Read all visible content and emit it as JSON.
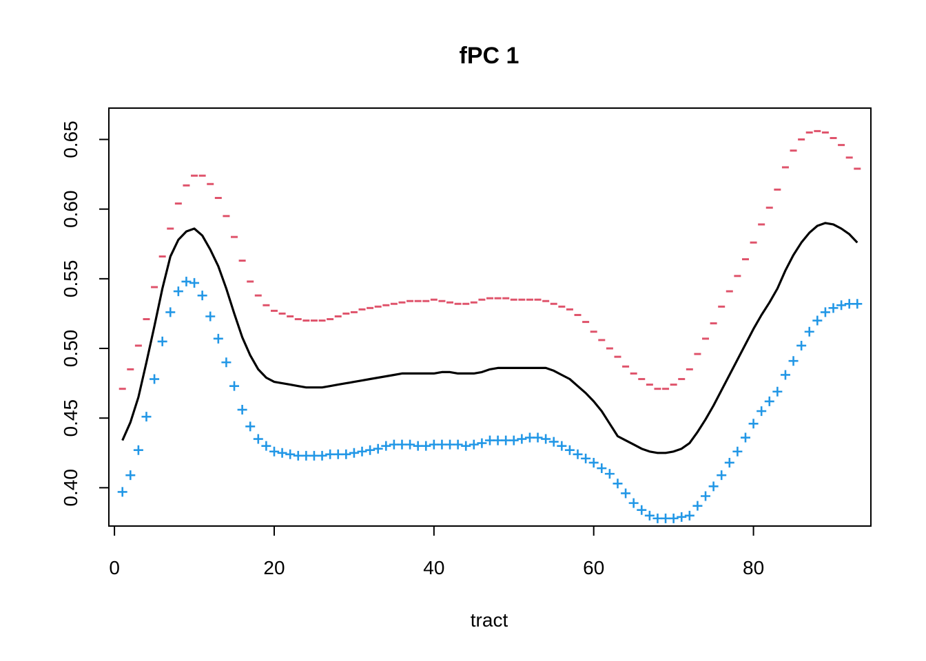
{
  "chart_data": {
    "type": "line",
    "title": "fPC 1",
    "xlabel": "tract",
    "ylabel": "",
    "xlim": [
      -0.7,
      94.7
    ],
    "ylim": [
      0.3725,
      0.6725
    ],
    "x_ticks": [
      0,
      20,
      40,
      60,
      80
    ],
    "y_ticks": [
      0.4,
      0.45,
      0.5,
      0.55,
      0.6,
      0.65
    ],
    "x_tick_labels": [
      "0",
      "20",
      "40",
      "60",
      "80"
    ],
    "y_tick_labels": [
      "0.40",
      "0.45",
      "0.50",
      "0.55",
      "0.60",
      "0.65"
    ],
    "grid": false,
    "legend": "none",
    "series": [
      {
        "role": "mean",
        "style": "line",
        "color": "#000000",
        "x": [
          1,
          2,
          3,
          4,
          5,
          6,
          7,
          8,
          9,
          10,
          11,
          12,
          13,
          14,
          15,
          16,
          17,
          18,
          19,
          20,
          21,
          22,
          23,
          24,
          25,
          26,
          27,
          28,
          29,
          30,
          31,
          32,
          33,
          34,
          35,
          36,
          37,
          38,
          39,
          40,
          41,
          42,
          43,
          44,
          45,
          46,
          47,
          48,
          49,
          50,
          51,
          52,
          53,
          54,
          55,
          56,
          57,
          58,
          59,
          60,
          61,
          62,
          63,
          64,
          65,
          66,
          67,
          68,
          69,
          70,
          71,
          72,
          73,
          74,
          75,
          76,
          77,
          78,
          79,
          80,
          81,
          82,
          83,
          84,
          85,
          86,
          87,
          88,
          89,
          90,
          91,
          92,
          93
        ],
        "values": [
          0.434,
          0.447,
          0.465,
          0.49,
          0.516,
          0.543,
          0.566,
          0.578,
          0.584,
          0.586,
          0.581,
          0.571,
          0.559,
          0.543,
          0.525,
          0.508,
          0.495,
          0.485,
          0.479,
          0.476,
          0.475,
          0.474,
          0.473,
          0.472,
          0.472,
          0.472,
          0.473,
          0.474,
          0.475,
          0.476,
          0.477,
          0.478,
          0.479,
          0.48,
          0.481,
          0.482,
          0.482,
          0.482,
          0.482,
          0.482,
          0.483,
          0.483,
          0.482,
          0.482,
          0.482,
          0.483,
          0.485,
          0.486,
          0.486,
          0.486,
          0.486,
          0.486,
          0.486,
          0.486,
          0.484,
          0.481,
          0.478,
          0.473,
          0.468,
          0.462,
          0.455,
          0.446,
          0.437,
          0.434,
          0.431,
          0.428,
          0.426,
          0.425,
          0.425,
          0.426,
          0.428,
          0.432,
          0.44,
          0.449,
          0.459,
          0.47,
          0.481,
          0.492,
          0.503,
          0.514,
          0.524,
          0.533,
          0.543,
          0.556,
          0.567,
          0.576,
          0.583,
          0.588,
          0.59,
          0.589,
          0.586,
          0.582,
          0.576
        ]
      },
      {
        "role": "mean + fPC",
        "style": "dash-marker",
        "color": "#DF536B",
        "x": [
          1,
          2,
          3,
          4,
          5,
          6,
          7,
          8,
          9,
          10,
          11,
          12,
          13,
          14,
          15,
          16,
          17,
          18,
          19,
          20,
          21,
          22,
          23,
          24,
          25,
          26,
          27,
          28,
          29,
          30,
          31,
          32,
          33,
          34,
          35,
          36,
          37,
          38,
          39,
          40,
          41,
          42,
          43,
          44,
          45,
          46,
          47,
          48,
          49,
          50,
          51,
          52,
          53,
          54,
          55,
          56,
          57,
          58,
          59,
          60,
          61,
          62,
          63,
          64,
          65,
          66,
          67,
          68,
          69,
          70,
          71,
          72,
          73,
          74,
          75,
          76,
          77,
          78,
          79,
          80,
          81,
          82,
          83,
          84,
          85,
          86,
          87,
          88,
          89,
          90,
          91,
          92,
          93
        ],
        "values": [
          0.471,
          0.485,
          0.502,
          0.521,
          0.544,
          0.566,
          0.586,
          0.604,
          0.617,
          0.624,
          0.624,
          0.618,
          0.608,
          0.595,
          0.58,
          0.563,
          0.548,
          0.538,
          0.531,
          0.527,
          0.525,
          0.523,
          0.521,
          0.52,
          0.52,
          0.52,
          0.521,
          0.523,
          0.525,
          0.526,
          0.528,
          0.529,
          0.53,
          0.531,
          0.532,
          0.533,
          0.534,
          0.534,
          0.534,
          0.535,
          0.534,
          0.533,
          0.532,
          0.532,
          0.533,
          0.535,
          0.536,
          0.536,
          0.536,
          0.535,
          0.535,
          0.535,
          0.535,
          0.534,
          0.532,
          0.53,
          0.528,
          0.524,
          0.519,
          0.512,
          0.506,
          0.5,
          0.494,
          0.487,
          0.482,
          0.478,
          0.474,
          0.471,
          0.471,
          0.474,
          0.478,
          0.485,
          0.496,
          0.507,
          0.518,
          0.53,
          0.541,
          0.552,
          0.564,
          0.576,
          0.589,
          0.601,
          0.614,
          0.63,
          0.642,
          0.65,
          0.655,
          0.656,
          0.655,
          0.651,
          0.646,
          0.637,
          0.629
        ]
      },
      {
        "role": "mean - fPC",
        "style": "plus-marker",
        "color": "#2297E6",
        "x": [
          1,
          2,
          3,
          4,
          5,
          6,
          7,
          8,
          9,
          10,
          11,
          12,
          13,
          14,
          15,
          16,
          17,
          18,
          19,
          20,
          21,
          22,
          23,
          24,
          25,
          26,
          27,
          28,
          29,
          30,
          31,
          32,
          33,
          34,
          35,
          36,
          37,
          38,
          39,
          40,
          41,
          42,
          43,
          44,
          45,
          46,
          47,
          48,
          49,
          50,
          51,
          52,
          53,
          54,
          55,
          56,
          57,
          58,
          59,
          60,
          61,
          62,
          63,
          64,
          65,
          66,
          67,
          68,
          69,
          70,
          71,
          72,
          73,
          74,
          75,
          76,
          77,
          78,
          79,
          80,
          81,
          82,
          83,
          84,
          85,
          86,
          87,
          88,
          89,
          90,
          91,
          92,
          93
        ],
        "values": [
          0.397,
          0.409,
          0.427,
          0.451,
          0.478,
          0.505,
          0.526,
          0.541,
          0.548,
          0.547,
          0.538,
          0.523,
          0.507,
          0.49,
          0.473,
          0.456,
          0.444,
          0.435,
          0.43,
          0.426,
          0.425,
          0.424,
          0.423,
          0.423,
          0.423,
          0.423,
          0.424,
          0.424,
          0.424,
          0.425,
          0.426,
          0.427,
          0.428,
          0.43,
          0.431,
          0.431,
          0.431,
          0.43,
          0.43,
          0.431,
          0.431,
          0.431,
          0.431,
          0.43,
          0.431,
          0.432,
          0.434,
          0.434,
          0.434,
          0.434,
          0.435,
          0.436,
          0.436,
          0.435,
          0.433,
          0.43,
          0.427,
          0.424,
          0.421,
          0.418,
          0.414,
          0.41,
          0.403,
          0.396,
          0.389,
          0.384,
          0.38,
          0.378,
          0.378,
          0.378,
          0.379,
          0.38,
          0.387,
          0.394,
          0.401,
          0.409,
          0.418,
          0.426,
          0.436,
          0.446,
          0.455,
          0.462,
          0.469,
          0.481,
          0.491,
          0.502,
          0.512,
          0.52,
          0.526,
          0.529,
          0.531,
          0.532,
          0.532
        ]
      }
    ]
  }
}
